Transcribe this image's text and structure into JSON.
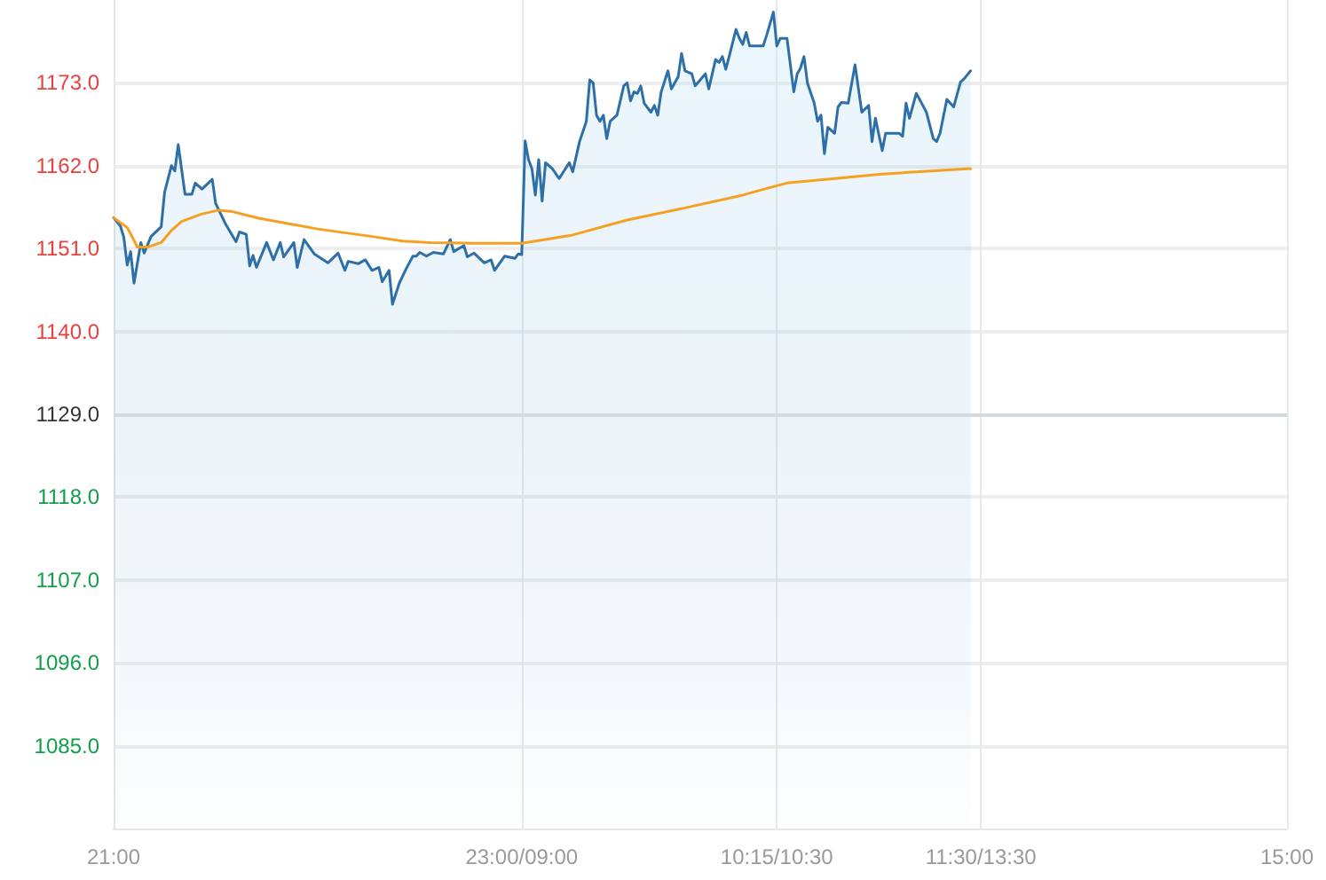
{
  "chart_data": {
    "type": "line",
    "categories": [
      "21:00",
      null,
      null,
      null,
      null,
      null,
      null,
      null,
      null,
      null,
      null,
      null,
      null,
      null,
      null,
      null,
      null,
      null,
      null,
      null,
      null,
      null,
      null,
      null,
      null,
      null,
      null,
      null,
      null,
      null,
      null,
      null,
      null,
      null,
      null,
      null,
      null,
      null,
      null,
      null,
      null,
      null,
      null,
      null,
      null,
      null,
      null,
      null,
      null,
      null,
      null,
      null,
      null,
      null,
      null,
      null,
      null,
      null,
      null,
      null,
      null,
      null,
      null,
      null,
      null,
      null,
      null,
      null,
      null,
      null,
      null,
      null,
      null,
      null,
      null,
      null,
      null,
      null,
      null,
      null,
      null,
      null,
      null,
      null,
      null,
      null,
      null,
      null,
      null,
      null,
      null,
      null,
      null,
      null,
      null,
      null,
      null,
      null,
      null,
      null,
      null,
      null,
      null,
      null,
      null,
      null,
      null,
      null,
      null,
      null,
      null,
      null,
      null,
      null,
      null,
      null,
      null,
      null,
      null,
      null,
      "23:00/09:00",
      null,
      null,
      null,
      null,
      null,
      null,
      null,
      null,
      null,
      null,
      null,
      null,
      null,
      null,
      null,
      null,
      null,
      null,
      null,
      null,
      null,
      null,
      null,
      null,
      null,
      null,
      null,
      null,
      null,
      null,
      null,
      null,
      null,
      null,
      null,
      null,
      null,
      null,
      null,
      null,
      null,
      null,
      null,
      null,
      null,
      null,
      null,
      null,
      null,
      null,
      null,
      null,
      null,
      null,
      null,
      null,
      null,
      null,
      null,
      null,
      null,
      null,
      null,
      null,
      null,
      null,
      null,
      null,
      null,
      null,
      null,
      null,
      null,
      null,
      "10:15/10:30",
      null,
      null,
      null,
      null,
      null,
      null,
      null,
      null,
      null,
      null,
      null,
      null,
      null,
      null,
      null,
      null,
      null,
      null,
      null,
      null,
      null,
      null,
      null,
      null,
      null,
      null,
      null,
      null,
      null,
      null,
      null,
      null,
      null,
      null,
      null,
      null,
      null,
      null,
      null,
      null,
      null,
      null,
      null,
      null,
      null,
      null,
      null,
      null,
      null,
      null,
      null,
      null,
      null,
      null,
      null,
      null,
      null,
      null,
      null,
      "11:30/13:30",
      null,
      null,
      null,
      null,
      null,
      null,
      null,
      null,
      null,
      null,
      null,
      null,
      null,
      null,
      null,
      null,
      null,
      null,
      null,
      null,
      null,
      null,
      null,
      null,
      null,
      null,
      null,
      null,
      null,
      null,
      null,
      null,
      null,
      null,
      null,
      null,
      null,
      null,
      null,
      null,
      null,
      null,
      null,
      null,
      null,
      null,
      null,
      null,
      null,
      null,
      null,
      null,
      null,
      null,
      null,
      null,
      null,
      null,
      null,
      null,
      null,
      null,
      null,
      null,
      null,
      null,
      null,
      null,
      null,
      null,
      null,
      null,
      null,
      null,
      null,
      null,
      null,
      null,
      null,
      null,
      null,
      null,
      null,
      null,
      null,
      null,
      null,
      null,
      null,
      "15:00"
    ],
    "ylim": [
      1074,
      1184
    ],
    "yticks": [
      {
        "value": 1085,
        "label": "1085.0"
      },
      {
        "value": 1096,
        "label": "1096.0"
      },
      {
        "value": 1107,
        "label": "1107.0"
      },
      {
        "value": 1118,
        "label": "1118.0"
      },
      {
        "value": 1129,
        "label": "1129.0"
      },
      {
        "value": 1140,
        "label": "1140.0"
      },
      {
        "value": 1151,
        "label": "1151.0"
      },
      {
        "value": 1162,
        "label": "1162.0"
      },
      {
        "value": 1173,
        "label": "1173.0"
      }
    ],
    "grid": true,
    "marker": "none",
    "line_style": "solid",
    "ref_lines": [
      {
        "axis": "y",
        "value": 1129,
        "color": "#d5dade"
      }
    ],
    "series": [
      {
        "type": "area",
        "color": "#2d6fa6",
        "values": [
          1155.1,
          null,
          1154.0,
          1152.5,
          1148.8,
          1150.6,
          1146.4,
          null,
          1151.8,
          1150.4,
          null,
          1152.6,
          null,
          null,
          1153.9,
          1158.5,
          null,
          1162.0,
          1161.3,
          1164.8,
          null,
          1158.2,
          null,
          1158.2,
          1159.7,
          null,
          1158.9,
          null,
          null,
          1160.2,
          1157.0,
          null,
          null,
          1154.2,
          null,
          null,
          1151.9,
          1153.2,
          null,
          1152.9,
          1148.7,
          1150.1,
          1148.5,
          null,
          null,
          1151.8,
          null,
          1149.5,
          null,
          1151.8,
          1149.9,
          null,
          null,
          1151.8,
          1148.5,
          null,
          1152.2,
          null,
          null,
          1150.3,
          null,
          null,
          null,
          1149.1,
          null,
          null,
          1150.4,
          null,
          1148.1,
          1149.3,
          null,
          null,
          1149.0,
          null,
          1149.5,
          null,
          1148.1,
          null,
          1148.5,
          1146.6,
          null,
          1148.1,
          1143.6,
          null,
          1146.4,
          null,
          1148.3,
          null,
          1150.0,
          1150.0,
          1150.5,
          null,
          1150.0,
          null,
          1150.5,
          null,
          null,
          1150.3,
          null,
          1152.2,
          1150.6,
          null,
          null,
          1151.4,
          1149.9,
          null,
          1150.4,
          null,
          null,
          1149.1,
          null,
          1149.5,
          1148.1,
          null,
          null,
          1150.0,
          null,
          null,
          1149.7,
          1150.3,
          1150.2,
          1165.3,
          1162.8,
          1161.6,
          1158.1,
          1162.8,
          1157.3,
          1162.4,
          null,
          1161.6,
          null,
          1160.3,
          null,
          null,
          1162.4,
          1161.2,
          null,
          1165.2,
          null,
          1167.9,
          1173.4,
          1173.0,
          1168.7,
          1167.9,
          1168.7,
          1165.6,
          1167.9,
          null,
          1168.7,
          null,
          1172.6,
          1173.0,
          1170.6,
          1171.8,
          1171.6,
          1172.6,
          1170.3,
          null,
          1169.1,
          1170.0,
          1168.7,
          1171.8,
          null,
          1174.6,
          1172.2,
          null,
          1173.8,
          1176.9,
          1174.6,
          null,
          1174.2,
          1172.6,
          null,
          null,
          1174.2,
          1172.2,
          null,
          1176.1,
          1175.7,
          1176.5,
          1174.8,
          1176.5,
          null,
          1180.1,
          1178.9,
          1178.1,
          1179.7,
          1177.9,
          null,
          null,
          null,
          1177.9,
          1179.3,
          null,
          1182.4,
          1177.9,
          1178.9,
          null,
          1178.9,
          null,
          1171.8,
          1174.2,
          1175.0,
          1176.5,
          1173.0,
          null,
          1170.3,
          1167.9,
          1168.7,
          1163.6,
          1167.1,
          null,
          1166.3,
          1169.8,
          1170.4,
          null,
          1170.3,
          null,
          1175.4,
          null,
          1169.1,
          null,
          1170.0,
          1165.2,
          1168.3,
          null,
          1164.0,
          1166.3,
          null,
          null,
          null,
          1166.3,
          1165.9,
          1170.3,
          1168.3,
          null,
          1171.6,
          1170.8,
          null,
          1169.1,
          null,
          1165.6,
          1165.2,
          1166.3,
          null,
          1170.8,
          null,
          1169.8,
          null,
          1173.1,
          1173.5,
          null,
          1174.6,
          null,
          null,
          null,
          null,
          null,
          null,
          null,
          null,
          null,
          null,
          null,
          null,
          null,
          null,
          null,
          null,
          null,
          null,
          null,
          null,
          null,
          null,
          null,
          null,
          null,
          null,
          null,
          null,
          null,
          null,
          null,
          null,
          null,
          null,
          null,
          null,
          null,
          null,
          null,
          null,
          null,
          null,
          null,
          null,
          null,
          null,
          null,
          null,
          null,
          null,
          null,
          null,
          null,
          null,
          null,
          null,
          null,
          null,
          null,
          null,
          null,
          null,
          null,
          null,
          null,
          null,
          null,
          null,
          null,
          null,
          null,
          null,
          null,
          null,
          null,
          null,
          null,
          null,
          null,
          null,
          null,
          null,
          null,
          null,
          null,
          null,
          null,
          null,
          null,
          null,
          null,
          null,
          null
        ]
      },
      {
        "color": "#f5a020",
        "values": [
          1155.1,
          null,
          null,
          null,
          1153.8,
          null,
          null,
          1151.2,
          null,
          null,
          1151.2,
          null,
          null,
          null,
          1151.8,
          null,
          null,
          1153.4,
          null,
          null,
          1154.6,
          null,
          null,
          null,
          null,
          null,
          1155.6,
          null,
          null,
          null,
          null,
          1156.1,
          null,
          null,
          null,
          1155.9,
          null,
          null,
          null,
          null,
          null,
          null,
          null,
          1155.0,
          null,
          null,
          null,
          null,
          null,
          null,
          null,
          null,
          null,
          null,
          null,
          null,
          null,
          null,
          null,
          null,
          1153.6,
          null,
          null,
          null,
          null,
          null,
          null,
          null,
          null,
          null,
          null,
          null,
          null,
          null,
          null,
          null,
          1152.6,
          null,
          null,
          null,
          null,
          null,
          null,
          null,
          null,
          1152.0,
          null,
          null,
          null,
          null,
          null,
          null,
          null,
          1151.8,
          null,
          null,
          null,
          null,
          null,
          null,
          null,
          null,
          null,
          null,
          null,
          null,
          1151.7,
          null,
          null,
          null,
          null,
          null,
          null,
          null,
          null,
          null,
          null,
          null,
          null,
          1151.7,
          1151.7,
          null,
          null,
          null,
          null,
          null,
          null,
          null,
          null,
          null,
          null,
          null,
          null,
          null,
          null,
          1152.8,
          null,
          null,
          null,
          null,
          null,
          null,
          null,
          null,
          null,
          null,
          null,
          null,
          null,
          null,
          null,
          1154.8,
          null,
          null,
          null,
          null,
          null,
          null,
          null,
          null,
          null,
          null,
          null,
          null,
          null,
          null,
          null,
          null,
          1156.4,
          null,
          null,
          null,
          null,
          null,
          null,
          null,
          null,
          null,
          null,
          null,
          null,
          null,
          null,
          null,
          null,
          1158.1,
          null,
          null,
          null,
          null,
          null,
          null,
          null,
          1159.1,
          null,
          null,
          null,
          null,
          1159.7,
          null,
          null,
          null,
          null,
          null,
          null,
          null,
          null,
          null,
          null,
          null,
          1160.2,
          null,
          null,
          null,
          null,
          null,
          null,
          null,
          null,
          null,
          null,
          null,
          null,
          null,
          null,
          null,
          1160.9,
          null,
          null,
          null,
          null,
          null,
          null,
          null,
          null,
          null,
          null,
          null,
          null,
          null,
          null,
          null,
          null,
          null,
          null,
          null,
          null,
          null,
          null,
          null,
          null,
          1161.6,
          1161.6,
          null,
          null,
          null,
          null,
          null,
          null,
          null,
          null,
          null,
          null,
          null,
          null,
          null,
          null,
          null,
          null,
          null,
          null,
          null,
          null,
          null,
          null,
          null,
          null,
          null,
          null,
          null,
          null,
          null,
          null,
          null,
          null,
          null,
          null,
          null,
          null,
          null,
          null,
          null,
          null,
          null,
          null,
          null,
          null,
          null,
          null,
          null,
          null,
          null,
          null,
          null,
          null,
          null,
          null,
          null,
          null,
          null,
          null,
          null,
          null,
          null,
          null,
          null,
          null,
          null,
          null,
          null,
          null,
          null,
          null,
          null,
          null,
          null,
          null,
          null,
          null,
          null,
          null,
          null,
          null,
          null,
          null,
          null,
          null,
          null,
          null,
          null,
          null,
          null,
          null,
          null,
          null,
          null
        ]
      }
    ]
  }
}
